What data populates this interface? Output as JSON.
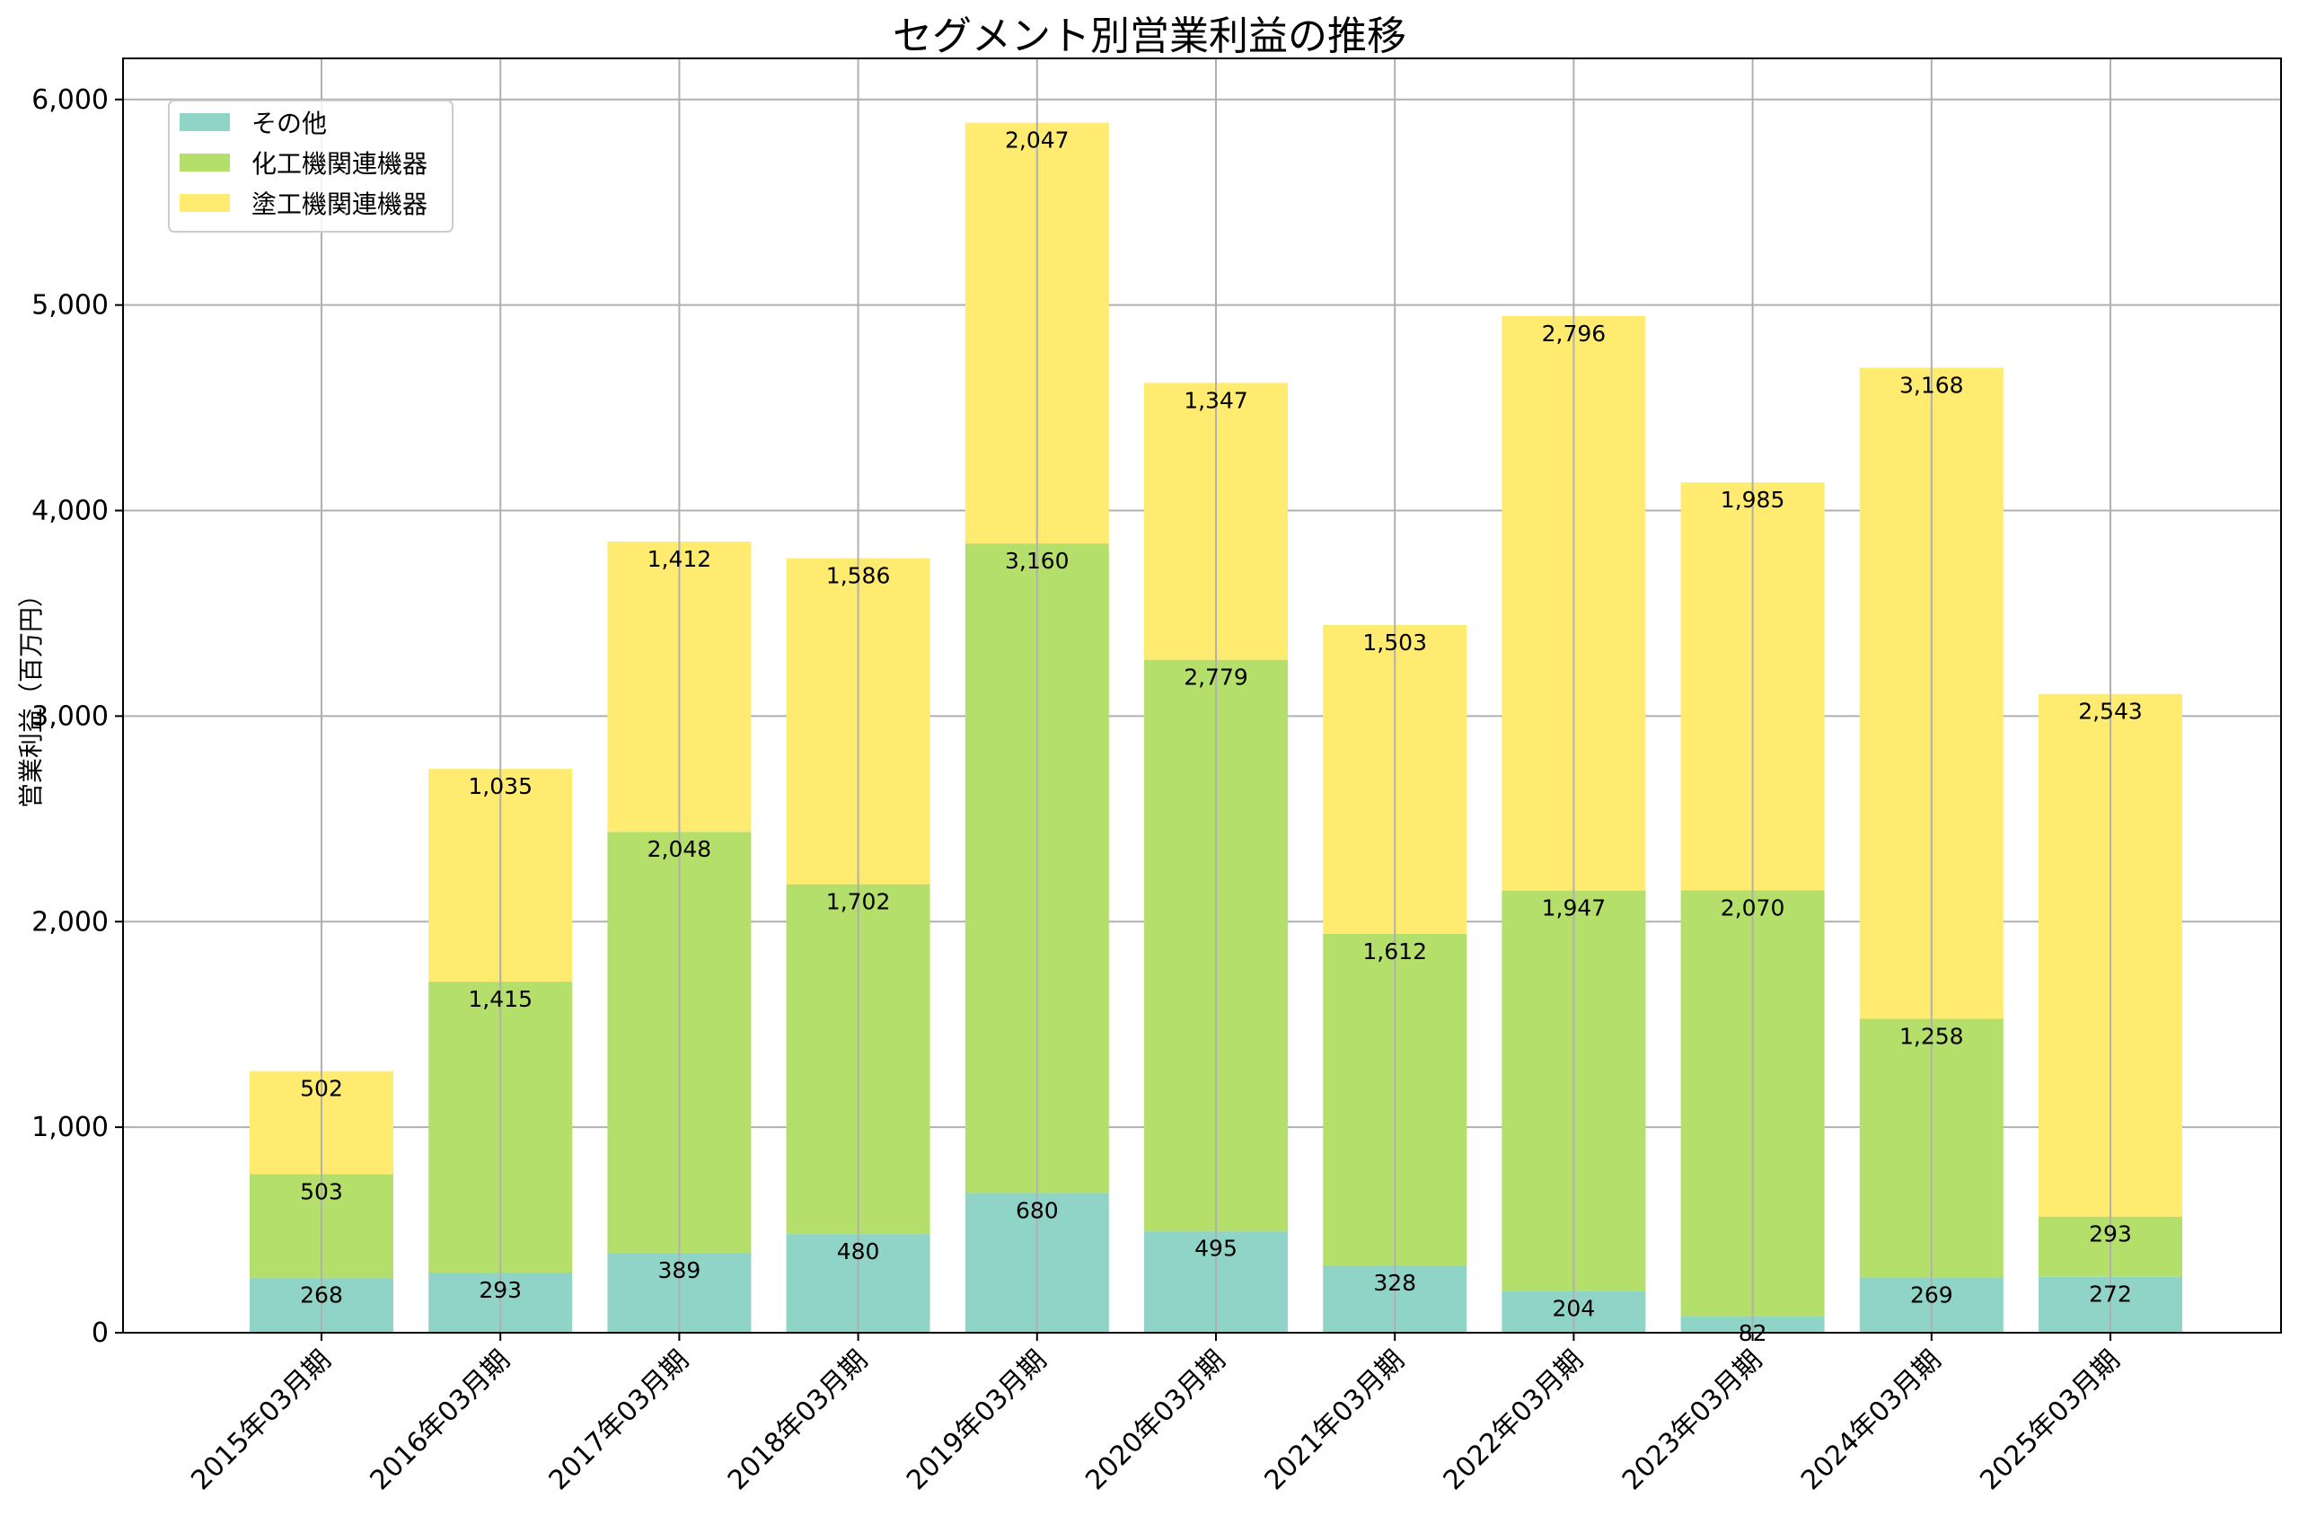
{
  "chart_data": {
    "type": "bar",
    "stacked": true,
    "title": "セグメント別営業利益の推移",
    "xlabel": "",
    "ylabel": "営業利益（百万円）",
    "ylim": [
      0,
      6200
    ],
    "yticks": [
      0,
      1000,
      2000,
      3000,
      4000,
      5000,
      6000
    ],
    "ytick_labels": [
      "0",
      "1,000",
      "2,000",
      "3,000",
      "4,000",
      "5,000",
      "6,000"
    ],
    "grid": true,
    "legend_position": "top-left",
    "categories": [
      "2015年03月期",
      "2016年03月期",
      "2017年03月期",
      "2018年03月期",
      "2019年03月期",
      "2020年03月期",
      "2021年03月期",
      "2022年03月期",
      "2023年03月期",
      "2024年03月期",
      "2025年03月期"
    ],
    "series": [
      {
        "name": "その他",
        "color": "#8fd4c6",
        "values": [
          268,
          293,
          389,
          480,
          680,
          495,
          328,
          204,
          82,
          269,
          272
        ]
      },
      {
        "name": "化工機関連機器",
        "color": "#b3df6a",
        "values": [
          503,
          1415,
          2048,
          1702,
          3160,
          2779,
          1612,
          1947,
          2070,
          1258,
          293
        ]
      },
      {
        "name": "塗工機関連機器",
        "color": "#feeb70",
        "values": [
          502,
          1035,
          1412,
          1586,
          2047,
          1347,
          1503,
          2796,
          1985,
          3168,
          2543
        ]
      }
    ]
  }
}
